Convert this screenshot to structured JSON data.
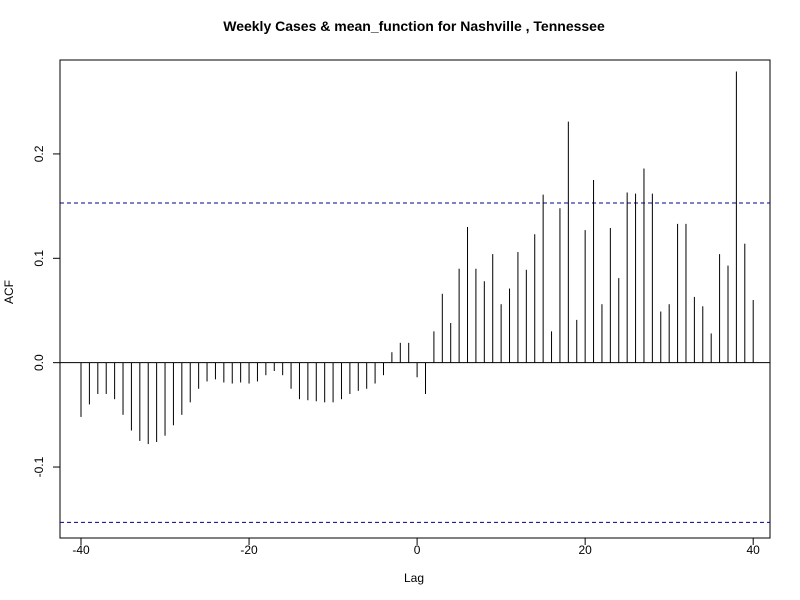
{
  "chart_data": {
    "type": "bar",
    "title": "Weekly Cases & mean_function for Nashville , Tennessee",
    "xlabel": "Lag",
    "ylabel": "ACF",
    "xlim": [
      -42.5,
      42
    ],
    "ylim": [
      -0.168,
      0.29
    ],
    "x_ticks": [
      -40,
      -20,
      0,
      20,
      40
    ],
    "x_tick_labels": [
      "-40",
      "-20",
      "0",
      "20",
      "40"
    ],
    "y_ticks": [
      -0.1,
      0.0,
      0.1,
      0.2
    ],
    "y_tick_labels": [
      "-0.1",
      "0.0",
      "0.1",
      "0.2"
    ],
    "confidence_bounds": [
      0.153,
      -0.153
    ],
    "bar_color": "#000000",
    "bound_color": "#00008b",
    "grid": false,
    "lags": [
      -40,
      -39,
      -38,
      -37,
      -36,
      -35,
      -34,
      -33,
      -32,
      -31,
      -30,
      -29,
      -28,
      -27,
      -26,
      -25,
      -24,
      -23,
      -22,
      -21,
      -20,
      -19,
      -18,
      -17,
      -16,
      -15,
      -14,
      -13,
      -12,
      -11,
      -10,
      -9,
      -8,
      -7,
      -6,
      -5,
      -4,
      -3,
      -2,
      -1,
      0,
      1,
      2,
      3,
      4,
      5,
      6,
      7,
      8,
      9,
      10,
      11,
      12,
      13,
      14,
      15,
      16,
      17,
      18,
      19,
      20,
      21,
      22,
      23,
      24,
      25,
      26,
      27,
      28,
      29,
      30,
      31,
      32,
      33,
      34,
      35,
      36,
      37,
      38,
      39,
      40
    ],
    "values": [
      -0.052,
      -0.04,
      -0.03,
      -0.03,
      -0.035,
      -0.05,
      -0.065,
      -0.075,
      -0.078,
      -0.076,
      -0.07,
      -0.06,
      -0.05,
      -0.038,
      -0.025,
      -0.018,
      -0.016,
      -0.019,
      -0.02,
      -0.019,
      -0.02,
      -0.018,
      -0.012,
      -0.008,
      -0.012,
      -0.025,
      -0.035,
      -0.036,
      -0.037,
      -0.038,
      -0.038,
      -0.035,
      -0.03,
      -0.027,
      -0.025,
      -0.02,
      -0.012,
      0.01,
      0.019,
      0.019,
      -0.014,
      -0.03,
      0.03,
      0.066,
      0.038,
      0.09,
      0.13,
      0.09,
      0.078,
      0.104,
      0.056,
      0.071,
      0.106,
      0.089,
      0.123,
      0.161,
      0.03,
      0.148,
      0.231,
      0.041,
      0.127,
      0.175,
      0.056,
      0.129,
      0.081,
      0.163,
      0.162,
      0.186,
      0.162,
      0.049,
      0.056,
      0.133,
      0.133,
      0.063,
      0.054,
      0.028,
      0.104,
      0.093,
      0.279,
      0.114,
      0.06
    ]
  }
}
